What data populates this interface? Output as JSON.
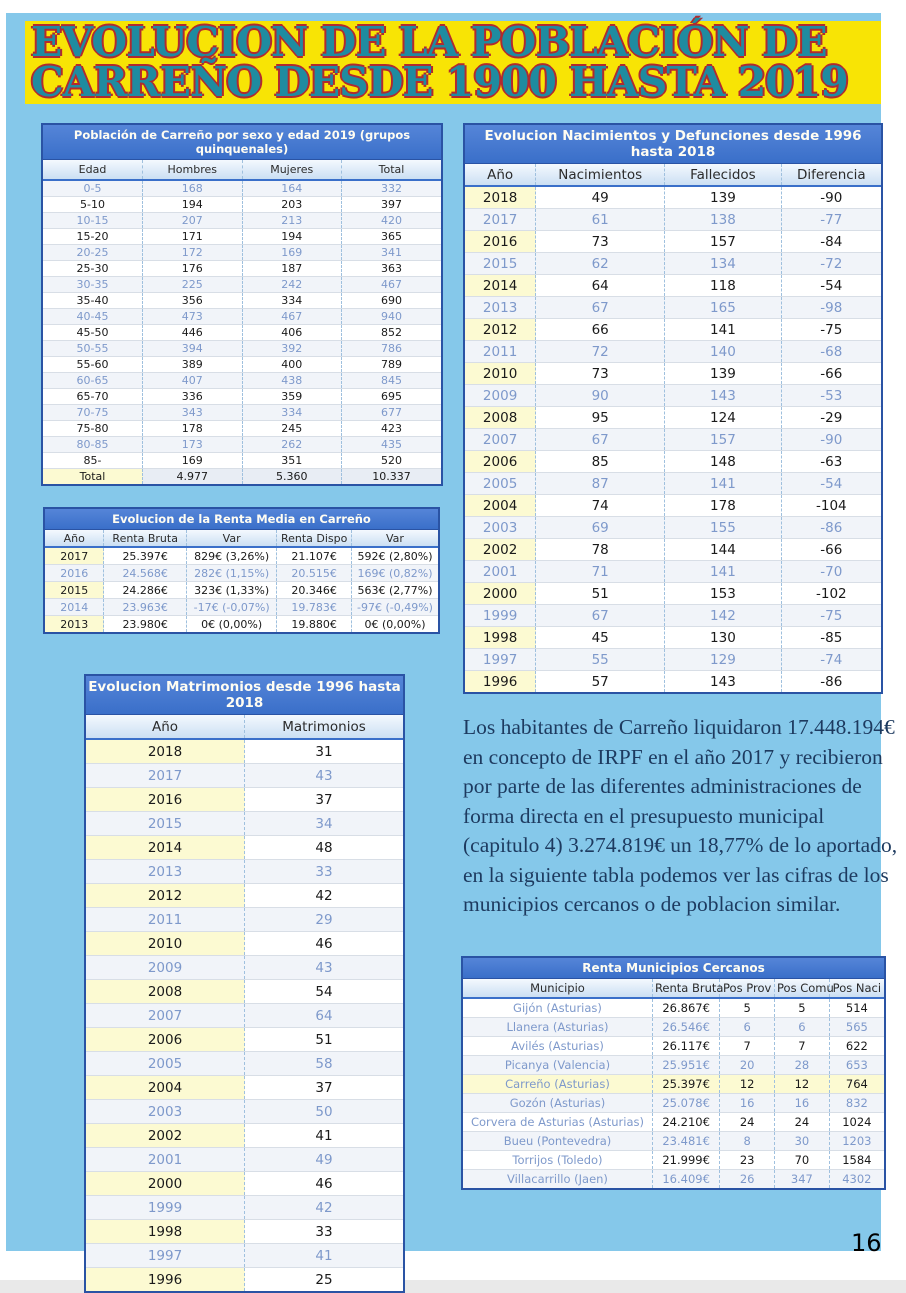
{
  "page": {
    "number": "16"
  },
  "title": {
    "line1": "EVOLUCION DE LA POBLACIÓN DE",
    "line2": "CARREÑO DESDE 1900 HASTA 2019"
  },
  "colors": {
    "content_bg": "#85C8EA",
    "banner_bg": "#F8E405",
    "header_blue": "#3A6FC9",
    "year_cell_bg": "#FCFAD2",
    "highlight_bg": "#FCFAD2",
    "title_teal": "#1F8BA0",
    "title_red": "#B22A2E",
    "paragraph_navy": "#1D3A5F"
  },
  "tables": {
    "poblacion": {
      "title": "Población de Carreño por sexo y edad 2019 (grupos quinquenales)",
      "columns": [
        "Edad",
        "Hombres",
        "Mujeres",
        "Total"
      ],
      "rows": [
        [
          "0-5",
          "168",
          "164",
          "332"
        ],
        [
          "5-10",
          "194",
          "203",
          "397"
        ],
        [
          "10-15",
          "207",
          "213",
          "420"
        ],
        [
          "15-20",
          "171",
          "194",
          "365"
        ],
        [
          "20-25",
          "172",
          "169",
          "341"
        ],
        [
          "25-30",
          "176",
          "187",
          "363"
        ],
        [
          "30-35",
          "225",
          "242",
          "467"
        ],
        [
          "35-40",
          "356",
          "334",
          "690"
        ],
        [
          "40-45",
          "473",
          "467",
          "940"
        ],
        [
          "45-50",
          "446",
          "406",
          "852"
        ],
        [
          "50-55",
          "394",
          "392",
          "786"
        ],
        [
          "55-60",
          "389",
          "400",
          "789"
        ],
        [
          "60-65",
          "407",
          "438",
          "845"
        ],
        [
          "65-70",
          "336",
          "359",
          "695"
        ],
        [
          "70-75",
          "343",
          "334",
          "677"
        ],
        [
          "75-80",
          "178",
          "245",
          "423"
        ],
        [
          "80-85",
          "173",
          "262",
          "435"
        ],
        [
          "85-",
          "169",
          "351",
          "520"
        ]
      ],
      "total_row": [
        "Total",
        "4.977",
        "5.360",
        "10.337"
      ]
    },
    "nacimientos": {
      "title": "Evolucion Nacimientos y Defunciones desde 1996 hasta 2018",
      "columns": [
        "Año",
        "Nacimientos",
        "Fallecidos",
        "Diferencia"
      ],
      "rows": [
        [
          "2018",
          "49",
          "139",
          "-90"
        ],
        [
          "2017",
          "61",
          "138",
          "-77"
        ],
        [
          "2016",
          "73",
          "157",
          "-84"
        ],
        [
          "2015",
          "62",
          "134",
          "-72"
        ],
        [
          "2014",
          "64",
          "118",
          "-54"
        ],
        [
          "2013",
          "67",
          "165",
          "-98"
        ],
        [
          "2012",
          "66",
          "141",
          "-75"
        ],
        [
          "2011",
          "72",
          "140",
          "-68"
        ],
        [
          "2010",
          "73",
          "139",
          "-66"
        ],
        [
          "2009",
          "90",
          "143",
          "-53"
        ],
        [
          "2008",
          "95",
          "124",
          "-29"
        ],
        [
          "2007",
          "67",
          "157",
          "-90"
        ],
        [
          "2006",
          "85",
          "148",
          "-63"
        ],
        [
          "2005",
          "87",
          "141",
          "-54"
        ],
        [
          "2004",
          "74",
          "178",
          "-104"
        ],
        [
          "2003",
          "69",
          "155",
          "-86"
        ],
        [
          "2002",
          "78",
          "144",
          "-66"
        ],
        [
          "2001",
          "71",
          "141",
          "-70"
        ],
        [
          "2000",
          "51",
          "153",
          "-102"
        ],
        [
          "1999",
          "67",
          "142",
          "-75"
        ],
        [
          "1998",
          "45",
          "130",
          "-85"
        ],
        [
          "1997",
          "55",
          "129",
          "-74"
        ],
        [
          "1996",
          "57",
          "143",
          "-86"
        ]
      ]
    },
    "renta": {
      "title": "Evolucion de la Renta Media en Carreño",
      "columns": [
        "Año",
        "Renta Bruta",
        "Var",
        "Renta Dispo",
        "Var"
      ],
      "rows": [
        [
          "2017",
          "25.397€",
          "829€ (3,26%)",
          "21.107€",
          "592€ (2,80%)"
        ],
        [
          "2016",
          "24.568€",
          "282€ (1,15%)",
          "20.515€",
          "169€ (0,82%)"
        ],
        [
          "2015",
          "24.286€",
          "323€ (1,33%)",
          "20.346€",
          "563€ (2,77%)"
        ],
        [
          "2014",
          "23.963€",
          "-17€ (-0,07%)",
          "19.783€",
          "-97€ (-0,49%)"
        ],
        [
          "2013",
          "23.980€",
          "0€ (0,00%)",
          "19.880€",
          "0€ (0,00%)"
        ]
      ]
    },
    "matrimonios": {
      "title": "Evolucion Matrimonios desde 1996 hasta 2018",
      "columns": [
        "Año",
        "Matrimonios"
      ],
      "rows": [
        [
          "2018",
          "31"
        ],
        [
          "2017",
          "43"
        ],
        [
          "2016",
          "37"
        ],
        [
          "2015",
          "34"
        ],
        [
          "2014",
          "48"
        ],
        [
          "2013",
          "33"
        ],
        [
          "2012",
          "42"
        ],
        [
          "2011",
          "29"
        ],
        [
          "2010",
          "46"
        ],
        [
          "2009",
          "43"
        ],
        [
          "2008",
          "54"
        ],
        [
          "2007",
          "64"
        ],
        [
          "2006",
          "51"
        ],
        [
          "2005",
          "58"
        ],
        [
          "2004",
          "37"
        ],
        [
          "2003",
          "50"
        ],
        [
          "2002",
          "41"
        ],
        [
          "2001",
          "49"
        ],
        [
          "2000",
          "46"
        ],
        [
          "1999",
          "42"
        ],
        [
          "1998",
          "33"
        ],
        [
          "1997",
          "41"
        ],
        [
          "1996",
          "25"
        ]
      ]
    },
    "municipios": {
      "title": "Renta Municipios Cercanos",
      "columns": [
        "Municipio",
        "Renta Bruta",
        "Pos Prov",
        "Pos Comu",
        "Pos Naci"
      ],
      "rows": [
        [
          "Gijón (Asturias)",
          "26.867€",
          "5",
          "5",
          "514"
        ],
        [
          "Llanera (Asturias)",
          "26.546€",
          "6",
          "6",
          "565"
        ],
        [
          "Avilés (Asturias)",
          "26.117€",
          "7",
          "7",
          "622"
        ],
        [
          "Picanya (Valencia)",
          "25.951€",
          "20",
          "28",
          "653"
        ],
        [
          "Carreño (Asturias)",
          "25.397€",
          "12",
          "12",
          "764"
        ],
        [
          "Gozón (Asturias)",
          "25.078€",
          "16",
          "16",
          "832"
        ],
        [
          "Corvera de Asturias (Asturias)",
          "24.210€",
          "24",
          "24",
          "1024"
        ],
        [
          "Bueu (Pontevedra)",
          "23.481€",
          "8",
          "30",
          "1203"
        ],
        [
          "Torrijos (Toledo)",
          "21.999€",
          "23",
          "70",
          "1584"
        ],
        [
          "Villacarrillo (Jaen)",
          "16.409€",
          "26",
          "347",
          "4302"
        ]
      ],
      "highlight_row": 4
    }
  },
  "paragraph": {
    "text": "Los habitantes de Carreño liquidaron 17.448.194€ en concepto de IRPF en el año 2017 y recibieron por parte de las diferentes administraciones de forma directa en el presupuesto municipal (capitulo 4) 3.274.819€ un 18,77% de lo aportado, en la siguiente tabla podemos ver las cifras de los municipios cercanos o de poblacion similar."
  }
}
